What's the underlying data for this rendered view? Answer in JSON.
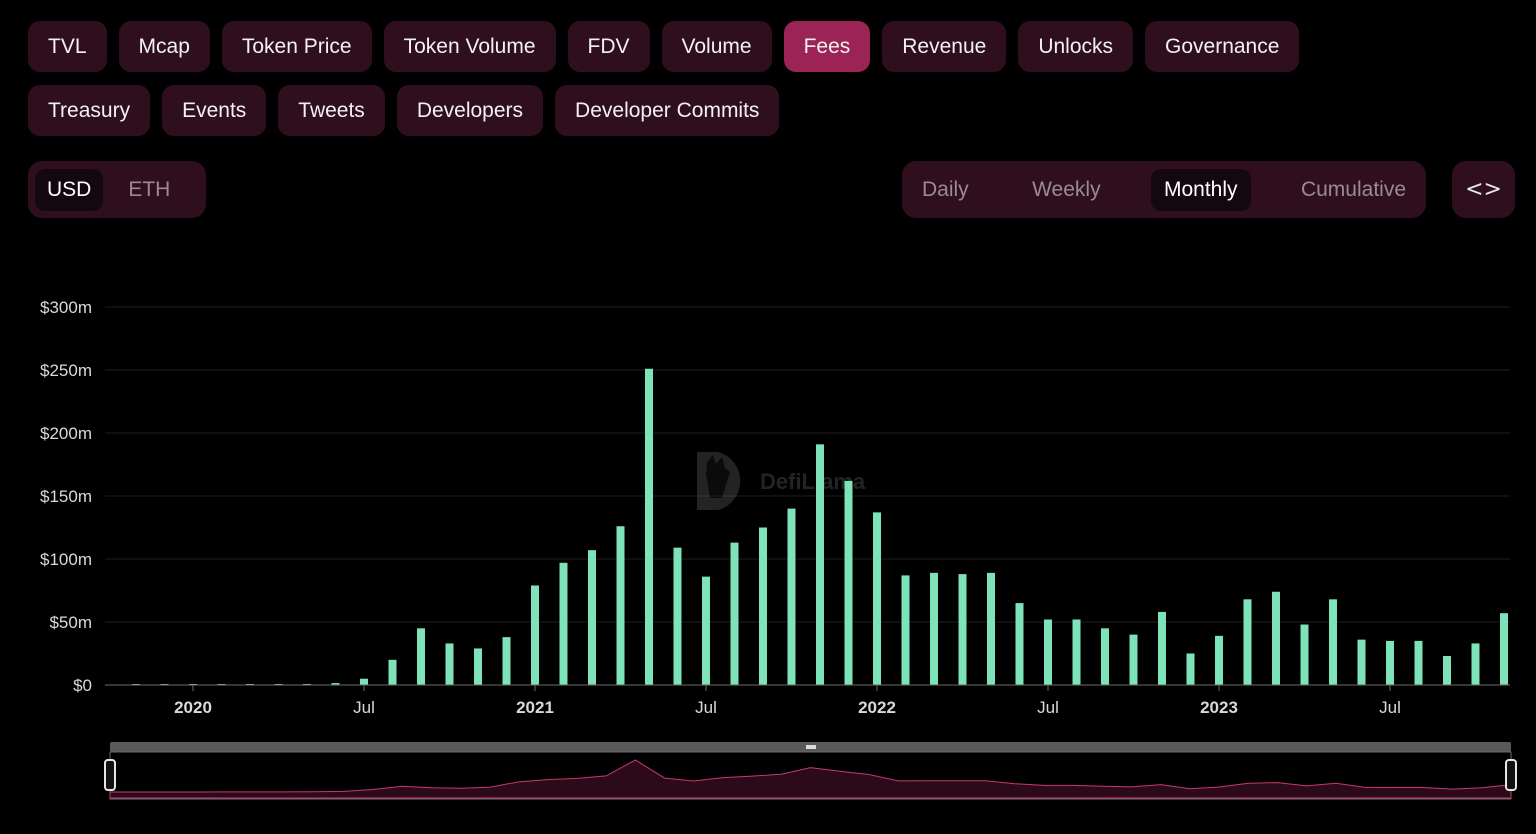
{
  "metric_tabs": [
    "TVL",
    "Mcap",
    "Token Price",
    "Token Volume",
    "FDV",
    "Volume",
    "Fees",
    "Revenue",
    "Unlocks",
    "Governance",
    "Treasury",
    "Events",
    "Tweets",
    "Developers",
    "Developer Commits"
  ],
  "active_metric": "Fees",
  "currency": {
    "options": [
      "USD",
      "ETH"
    ],
    "selected": "USD"
  },
  "period": {
    "options": [
      "Daily",
      "Weekly",
      "Monthly",
      "Cumulative"
    ],
    "selected": "Monthly"
  },
  "embed_icon": "code-icon",
  "watermark": "DefiLlama",
  "colors": {
    "bar": "#7ee3b8",
    "active_tab": "#9b2356",
    "tab_bg": "#2f0f1e",
    "brush_line": "#c23a72"
  },
  "chart_data": {
    "type": "bar",
    "title": "",
    "xlabel": "",
    "ylabel": "",
    "x": [
      "2019-11",
      "2019-12",
      "2020-01",
      "2020-02",
      "2020-03",
      "2020-04",
      "2020-05",
      "2020-06",
      "2020-07",
      "2020-08",
      "2020-09",
      "2020-10",
      "2020-11",
      "2020-12",
      "2021-01",
      "2021-02",
      "2021-03",
      "2021-04",
      "2021-05",
      "2021-06",
      "2021-07",
      "2021-08",
      "2021-09",
      "2021-10",
      "2021-11",
      "2021-12",
      "2022-01",
      "2022-02",
      "2022-03",
      "2022-04",
      "2022-05",
      "2022-06",
      "2022-07",
      "2022-08",
      "2022-09",
      "2022-10",
      "2022-11",
      "2022-12",
      "2023-01",
      "2023-02",
      "2023-03",
      "2023-04",
      "2023-05",
      "2023-06",
      "2023-07",
      "2023-08",
      "2023-09",
      "2023-10",
      "2023-11"
    ],
    "values": [
      0.1,
      0.1,
      0.2,
      0.3,
      0.4,
      0.5,
      0.8,
      1.5,
      5,
      20,
      45,
      33,
      29,
      38,
      79,
      97,
      107,
      126,
      251,
      109,
      86,
      113,
      125,
      140,
      191,
      162,
      137,
      87,
      89,
      88,
      89,
      65,
      52,
      52,
      45,
      40,
      58,
      25,
      39,
      68,
      74,
      48,
      68,
      36,
      35,
      35,
      23,
      33,
      57
    ],
    "y_ticks": [
      "$0",
      "$50m",
      "$100m",
      "$150m",
      "$200m",
      "$250m",
      "$300m"
    ],
    "x_ticks": [
      {
        "label": "2020",
        "x": "2020-01",
        "bold": true
      },
      {
        "label": "Jul",
        "x": "2020-07",
        "bold": false
      },
      {
        "label": "2021",
        "x": "2021-01",
        "bold": true
      },
      {
        "label": "Jul",
        "x": "2021-07",
        "bold": false
      },
      {
        "label": "2022",
        "x": "2022-01",
        "bold": true
      },
      {
        "label": "Jul",
        "x": "2022-07",
        "bold": false
      },
      {
        "label": "2023",
        "x": "2023-01",
        "bold": true
      },
      {
        "label": "Jul",
        "x": "2023-07",
        "bold": false
      }
    ],
    "unit": "USD millions",
    "ylim": [
      0,
      300
    ],
    "grid": true,
    "legend": "none"
  }
}
